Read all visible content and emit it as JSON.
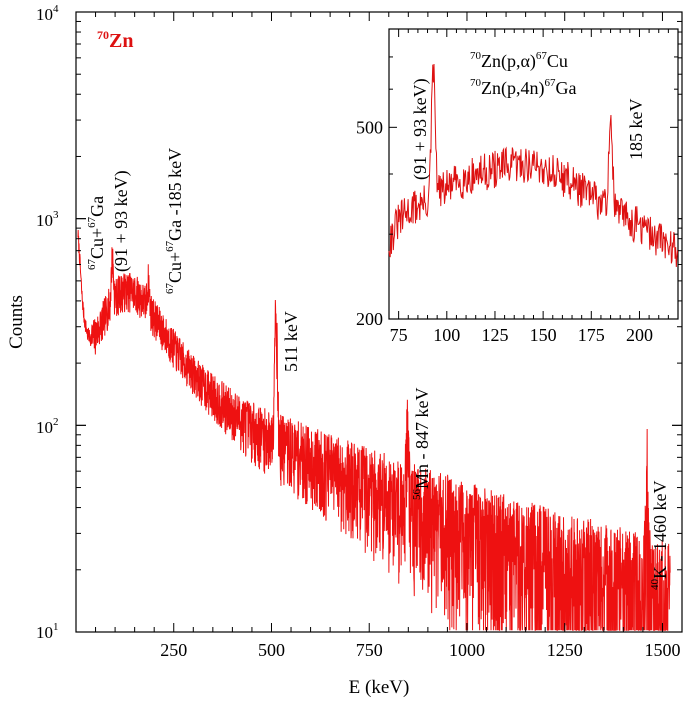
{
  "chart_data": [
    {
      "type": "line",
      "title": "70Zn",
      "title_parts": {
        "mass": "70",
        "element": "Zn"
      },
      "xlabel": "E (keV)",
      "ylabel": "Counts",
      "xlim": [
        0,
        1550
      ],
      "ylim": [
        10,
        10000
      ],
      "yscale": "log",
      "x_ticks": [
        250,
        500,
        750,
        1000,
        1250,
        1500
      ],
      "y_ticks": [
        {
          "base": "10",
          "exp": "1"
        },
        {
          "base": "10",
          "exp": "2"
        },
        {
          "base": "10",
          "exp": "3"
        },
        {
          "base": "10",
          "exp": "4"
        }
      ],
      "line_color": "#ee1111",
      "background_points": [
        [
          5,
          850
        ],
        [
          10,
          620
        ],
        [
          15,
          430
        ],
        [
          20,
          340
        ],
        [
          25,
          300
        ],
        [
          30,
          275
        ],
        [
          40,
          262
        ],
        [
          50,
          275
        ],
        [
          60,
          300
        ],
        [
          70,
          330
        ],
        [
          80,
          365
        ],
        [
          90,
          395
        ],
        [
          100,
          420
        ],
        [
          110,
          438
        ],
        [
          120,
          448
        ],
        [
          130,
          452
        ],
        [
          140,
          450
        ],
        [
          150,
          442
        ],
        [
          160,
          428
        ],
        [
          170,
          408
        ],
        [
          180,
          385
        ],
        [
          190,
          360
        ],
        [
          200,
          335
        ],
        [
          220,
          292
        ],
        [
          240,
          255
        ],
        [
          260,
          225
        ],
        [
          280,
          200
        ],
        [
          300,
          180
        ],
        [
          320,
          162
        ],
        [
          340,
          148
        ],
        [
          360,
          136
        ],
        [
          380,
          125
        ],
        [
          400,
          116
        ],
        [
          420,
          108
        ],
        [
          440,
          101
        ],
        [
          460,
          95
        ],
        [
          480,
          90
        ],
        [
          500,
          86
        ],
        [
          520,
          82
        ],
        [
          550,
          77
        ],
        [
          600,
          69
        ],
        [
          650,
          62
        ],
        [
          700,
          56
        ],
        [
          750,
          51
        ],
        [
          800,
          46
        ],
        [
          850,
          41
        ],
        [
          900,
          37
        ],
        [
          950,
          34
        ],
        [
          1000,
          31
        ],
        [
          1050,
          28
        ],
        [
          1100,
          25.5
        ],
        [
          1150,
          23.5
        ],
        [
          1200,
          21.5
        ],
        [
          1250,
          20
        ],
        [
          1300,
          18.5
        ],
        [
          1350,
          17
        ],
        [
          1400,
          16
        ],
        [
          1450,
          15
        ],
        [
          1500,
          14
        ],
        [
          1520,
          13.5
        ]
      ],
      "peaks": [
        {
          "center": 93,
          "height": 640,
          "width": 2.5
        },
        {
          "center": 185,
          "height": 500,
          "width": 2.5
        },
        {
          "center": 511,
          "height": 360,
          "width": 3
        },
        {
          "center": 847,
          "height": 97,
          "width": 3
        },
        {
          "center": 1460,
          "height": 53,
          "width": 3
        }
      ],
      "annotations": {
        "cu_ga_a": {
          "iso1": "67",
          "el1": "Cu+",
          "iso2": "67",
          "el2": "Ga"
        },
        "cu_ga_b": "(91 + 93  keV)",
        "cu_ga_185": {
          "iso1": "67",
          "el1": "Cu+",
          "iso2": "67",
          "el2": "Ga -185 keV"
        },
        "p511": "511 keV",
        "mn": {
          "iso": "56",
          "text": "Mn - 847 keV"
        },
        "k": {
          "iso": "40",
          "text": "K - 1460 keV"
        }
      }
    },
    {
      "type": "line",
      "title": "inset",
      "xlim": [
        70,
        220
      ],
      "ylim": [
        200,
        800
      ],
      "yscale": "log",
      "x_ticks": [
        75,
        100,
        125,
        150,
        175,
        200
      ],
      "y_ticks": [
        200,
        500
      ],
      "line_color": "#dd1111",
      "background_points": [
        [
          70,
          290
        ],
        [
          75,
          320
        ],
        [
          80,
          335
        ],
        [
          85,
          345
        ],
        [
          90,
          350
        ],
        [
          95,
          365
        ],
        [
          100,
          375
        ],
        [
          105,
          385
        ],
        [
          110,
          392
        ],
        [
          115,
          400
        ],
        [
          120,
          405
        ],
        [
          125,
          410
        ],
        [
          130,
          415
        ],
        [
          135,
          418
        ],
        [
          140,
          420
        ],
        [
          145,
          418
        ],
        [
          150,
          412
        ],
        [
          155,
          405
        ],
        [
          160,
          395
        ],
        [
          165,
          385
        ],
        [
          170,
          372
        ],
        [
          175,
          360
        ],
        [
          180,
          348
        ],
        [
          185,
          340
        ],
        [
          190,
          332
        ],
        [
          195,
          322
        ],
        [
          200,
          312
        ],
        [
          205,
          302
        ],
        [
          210,
          294
        ],
        [
          215,
          286
        ],
        [
          220,
          280
        ]
      ],
      "peaks": [
        {
          "center": 93,
          "height": 650,
          "width": 0.9
        },
        {
          "center": 185,
          "height": 520,
          "width": 0.9
        }
      ],
      "reactions": [
        {
          "a": "70",
          "b": "Zn(p,α)",
          "c": "67",
          "d": "Cu"
        },
        {
          "a": "70",
          "b": "Zn(p,4n)",
          "c": "67",
          "d": "Ga"
        }
      ],
      "annotations": {
        "p93": "(91 + 93  keV)",
        "p185": "185 keV"
      }
    }
  ]
}
